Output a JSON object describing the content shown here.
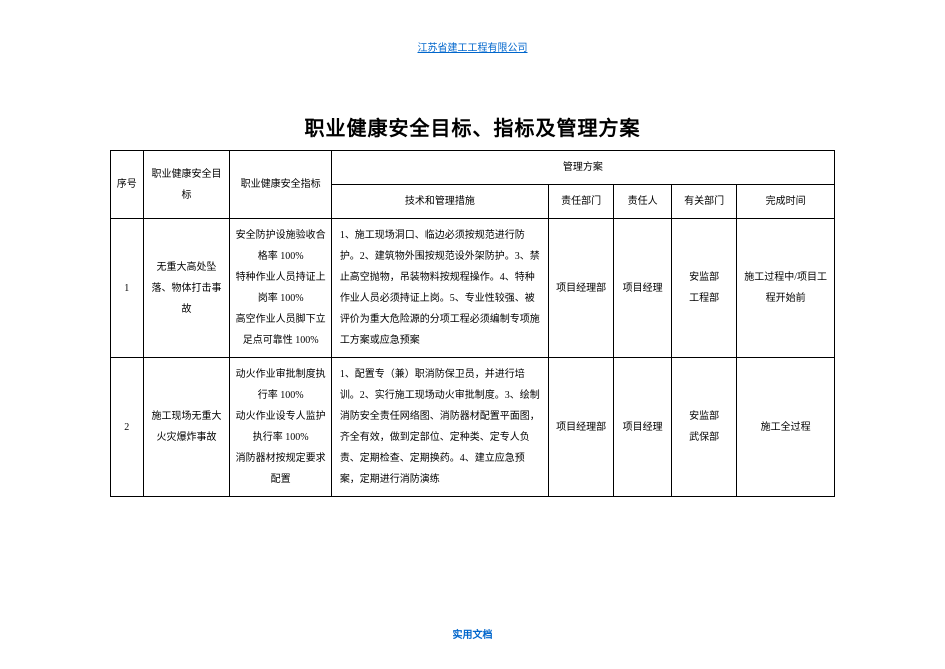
{
  "header_link": "江苏省建工工程有限公司",
  "title": "职业健康安全目标、指标及管理方案",
  "columns": {
    "seq": "序号",
    "goal": "职业健康安全目标",
    "index": "职业健康安全指标",
    "plan": "管理方案",
    "measures": "技术和管理措施",
    "resp_dept": "责任部门",
    "resp_person": "责任人",
    "other_dept": "有关部门",
    "time": "完成时间"
  },
  "rows": [
    {
      "seq": "1",
      "goal": "无重大高处坠落、物体打击事故",
      "index": "安全防护设施验收合格率 100%\n特种作业人员持证上岗率 100%\n高空作业人员脚下立足点可靠性 100%",
      "measures": "1、施工现场洞口、临边必须按规范进行防护。2、建筑物外围按规范设外架防护。3、禁止高空抛物，吊装物料按规程操作。4、特种作业人员必须持证上岗。5、专业性较强、被评价为重大危险源的分项工程必须编制专项施工方案或应急预案",
      "resp_dept": "项目经理部",
      "resp_person": "项目经理",
      "other_dept": "安监部\n工程部",
      "time": "施工过程中/项目工程开始前"
    },
    {
      "seq": "2",
      "goal": "施工现场无重大火灾爆炸事故",
      "index": "动火作业审批制度执行率 100%\n动火作业设专人监护执行率 100%\n消防器材按规定要求配置",
      "measures": "1、配置专（兼）职消防保卫员，并进行培训。2、实行施工现场动火审批制度。3、绘制消防安全责任网络图、消防器材配置平面图，齐全有效，做到定部位、定种类、定专人负责、定期检查、定期换药。4、建立应急预案，定期进行消防演练",
      "resp_dept": "项目经理部",
      "resp_person": "项目经理",
      "other_dept": "安监部\n武保部",
      "time": "施工全过程"
    }
  ],
  "footer": "实用文档"
}
